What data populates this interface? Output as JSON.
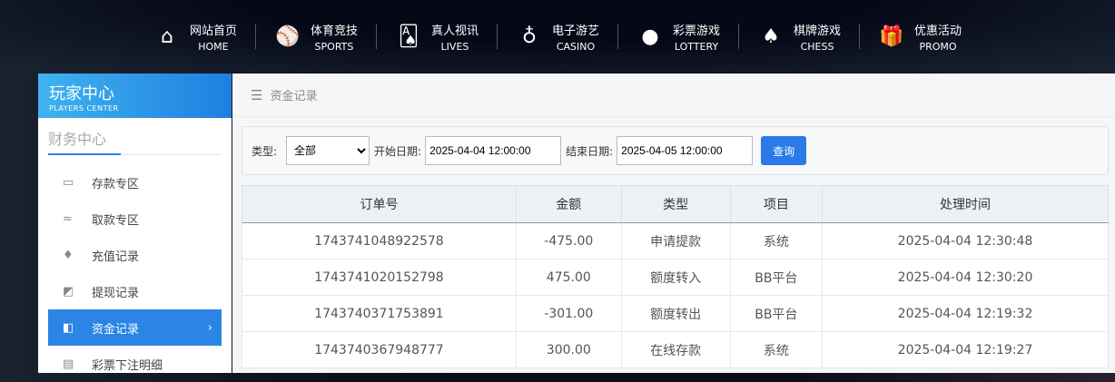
{
  "nav": [
    {
      "zh": "网站首页",
      "en": "HOME",
      "icon": "⌂"
    },
    {
      "zh": "体育竞技",
      "en": "SPORTS",
      "icon": "⚾"
    },
    {
      "zh": "真人视讯",
      "en": "LIVES",
      "icon": "🂡"
    },
    {
      "zh": "电子游艺",
      "en": "CASINO",
      "icon": "♁"
    },
    {
      "zh": "彩票游戏",
      "en": "LOTTERY",
      "icon": "●"
    },
    {
      "zh": "棋牌游戏",
      "en": "CHESS",
      "icon": "♠"
    },
    {
      "zh": "优惠活动",
      "en": "PROMO",
      "icon": "🎁"
    }
  ],
  "sidebar": {
    "title": "玩家中心",
    "subtitle": "PLAYERS CENTER",
    "section": "财务中心",
    "items": [
      {
        "label": "存款专区",
        "icon": "▭"
      },
      {
        "label": "取款专区",
        "icon": "≈"
      },
      {
        "label": "充值记录",
        "icon": "♦"
      },
      {
        "label": "提现记录",
        "icon": "◩"
      },
      {
        "label": "资金记录",
        "icon": "◧",
        "active": true
      },
      {
        "label": "彩票下注明细",
        "icon": "▤"
      }
    ]
  },
  "breadcrumb": "资金记录",
  "filter": {
    "type_label": "类型:",
    "type_value": "全部",
    "start_label": "开始日期:",
    "start_value": "2025-04-04 12:00:00",
    "end_label": "结束日期:",
    "end_value": "2025-04-05 12:00:00",
    "query": "查询"
  },
  "table": {
    "headers": [
      "订单号",
      "金额",
      "类型",
      "项目",
      "处理时间"
    ],
    "rows": [
      [
        "1743741048922578",
        "-475.00",
        "申请提款",
        "系统",
        "2025-04-04 12:30:48"
      ],
      [
        "1743741020152798",
        "475.00",
        "额度转入",
        "BB平台",
        "2025-04-04 12:30:20"
      ],
      [
        "1743740371753891",
        "-301.00",
        "额度转出",
        "BB平台",
        "2025-04-04 12:19:32"
      ],
      [
        "1743740367948777",
        "300.00",
        "在线存款",
        "系统",
        "2025-04-04 12:19:27"
      ]
    ]
  }
}
